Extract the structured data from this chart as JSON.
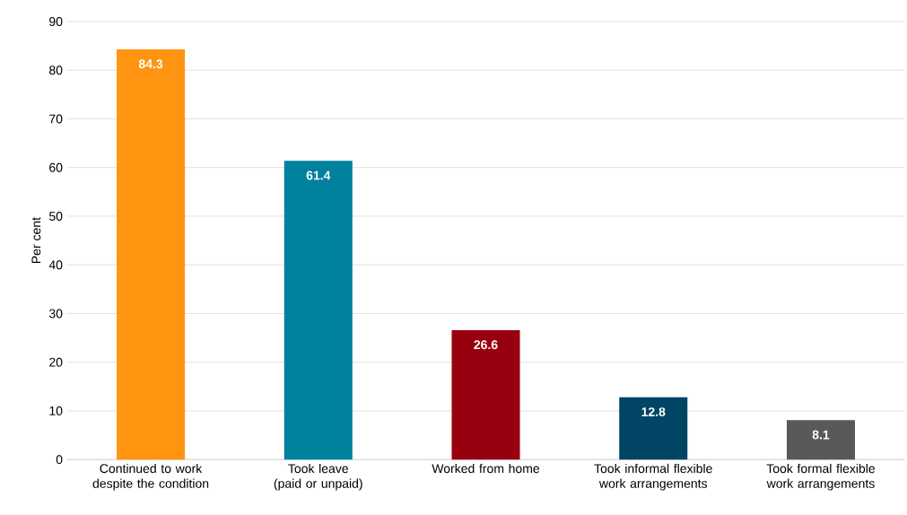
{
  "chart_data": {
    "type": "bar",
    "ylabel": "Per cent",
    "categories": [
      "Continued to work despite the condition",
      "Took leave (paid or unpaid)",
      "Worked from home",
      "Took informal flexible work arrangements",
      "Took formal flexible work arrangements"
    ],
    "values": [
      84.3,
      61.4,
      26.6,
      12.8,
      8.1
    ],
    "colors": [
      "#ff9410",
      "#00819e",
      "#99000f",
      "#004563",
      "#595959"
    ],
    "ylim": [
      0,
      90
    ],
    "yticks": [
      0,
      10,
      20,
      30,
      40,
      50,
      60,
      70,
      80,
      90
    ],
    "grid": "y",
    "data_labels": true
  }
}
